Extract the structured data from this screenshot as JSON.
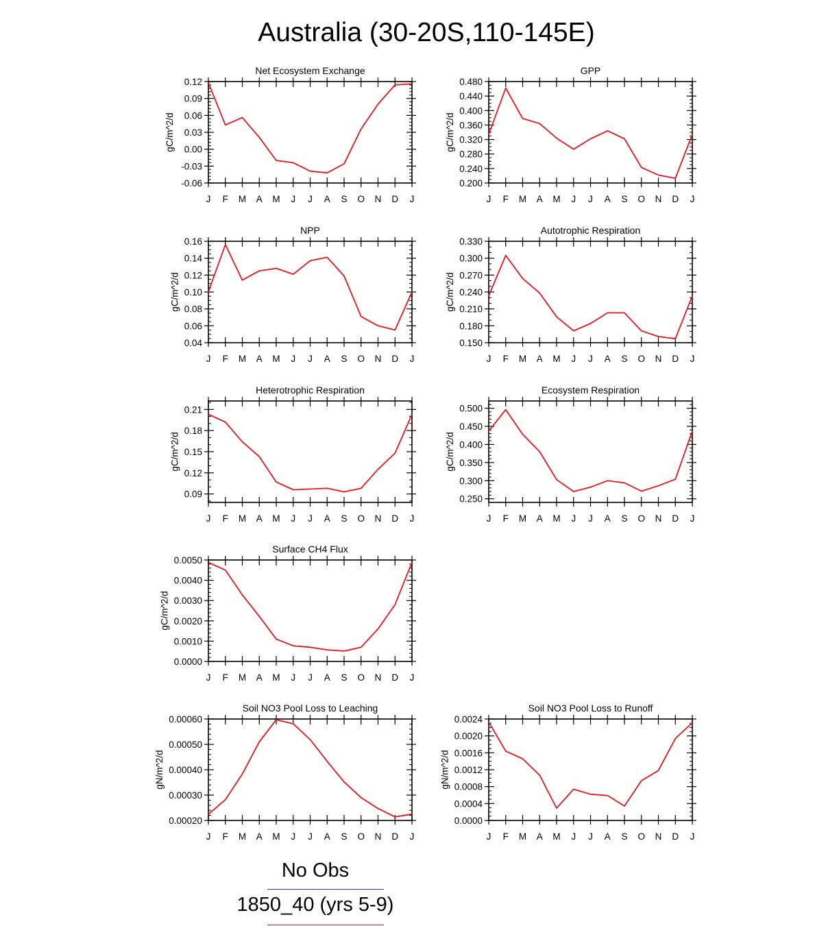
{
  "page": {
    "title": "Australia (30-20S,110-145E)"
  },
  "colors": {
    "series": "#e8141a",
    "obs": "#2b2bd6",
    "axis": "#000000"
  },
  "legend": [
    {
      "label": "No Obs",
      "color": "#2b2bd6"
    },
    {
      "label": "1850_40 (yrs 5-9)",
      "color": "#e8141a"
    }
  ],
  "chart_data": [
    {
      "type": "line",
      "title": "Net Ecosystem Exchange",
      "ylabel": "gC/m^2/d",
      "categories": [
        "J",
        "F",
        "M",
        "A",
        "M",
        "J",
        "J",
        "A",
        "S",
        "O",
        "N",
        "D",
        "J"
      ],
      "ylim": [
        -0.06,
        0.12
      ],
      "yticks": [
        -0.06,
        -0.03,
        0.0,
        0.03,
        0.06,
        0.09,
        0.12
      ],
      "ytick_labels": [
        "-0.06",
        "-0.03",
        "0.00",
        "0.03",
        "0.06",
        "0.09",
        "0.12"
      ],
      "yminor": 5,
      "series": [
        {
          "name": "1850_40 (yrs 5-9)",
          "values": [
            0.118,
            0.043,
            0.056,
            0.021,
            -0.02,
            -0.024,
            -0.039,
            -0.042,
            -0.026,
            0.036,
            0.08,
            0.114,
            0.116
          ]
        }
      ]
    },
    {
      "type": "line",
      "title": "GPP",
      "ylabel": "gC/m^2/d",
      "categories": [
        "J",
        "F",
        "M",
        "A",
        "M",
        "J",
        "J",
        "A",
        "S",
        "O",
        "N",
        "D",
        "J"
      ],
      "ylim": [
        0.2,
        0.48
      ],
      "yticks": [
        0.2,
        0.24,
        0.28,
        0.32,
        0.36,
        0.4,
        0.44,
        0.48
      ],
      "ytick_labels": [
        "0.200",
        "0.240",
        "0.280",
        "0.320",
        "0.360",
        "0.400",
        "0.440",
        "0.480"
      ],
      "yminor": 4,
      "series": [
        {
          "name": "1850_40 (yrs 5-9)",
          "values": [
            0.334,
            0.462,
            0.378,
            0.364,
            0.324,
            0.293,
            0.322,
            0.344,
            0.322,
            0.243,
            0.222,
            0.213,
            0.334
          ]
        }
      ]
    },
    {
      "type": "line",
      "title": "NPP",
      "ylabel": "gC/m^2/d",
      "categories": [
        "J",
        "F",
        "M",
        "A",
        "M",
        "J",
        "J",
        "A",
        "S",
        "O",
        "N",
        "D",
        "J"
      ],
      "ylim": [
        0.04,
        0.16
      ],
      "yticks": [
        0.04,
        0.06,
        0.08,
        0.1,
        0.12,
        0.14,
        0.16
      ],
      "ytick_labels": [
        "0.04",
        "0.06",
        "0.08",
        "0.10",
        "0.12",
        "0.14",
        "0.16"
      ],
      "yminor": 4,
      "series": [
        {
          "name": "1850_40 (yrs 5-9)",
          "values": [
            0.1,
            0.156,
            0.114,
            0.125,
            0.128,
            0.121,
            0.137,
            0.141,
            0.119,
            0.071,
            0.06,
            0.055,
            0.1
          ]
        }
      ]
    },
    {
      "type": "line",
      "title": "Autotrophic Respiration",
      "ylabel": "gC/m^2/d",
      "categories": [
        "J",
        "F",
        "M",
        "A",
        "M",
        "J",
        "J",
        "A",
        "S",
        "O",
        "N",
        "D",
        "J"
      ],
      "ylim": [
        0.15,
        0.33
      ],
      "yticks": [
        0.15,
        0.18,
        0.21,
        0.24,
        0.27,
        0.3,
        0.33
      ],
      "ytick_labels": [
        "0.150",
        "0.180",
        "0.210",
        "0.240",
        "0.270",
        "0.300",
        "0.330"
      ],
      "yminor": 3,
      "series": [
        {
          "name": "1850_40 (yrs 5-9)",
          "values": [
            0.233,
            0.305,
            0.264,
            0.238,
            0.196,
            0.171,
            0.184,
            0.203,
            0.203,
            0.171,
            0.161,
            0.157,
            0.233
          ]
        }
      ]
    },
    {
      "type": "line",
      "title": "Heterotrophic Respiration",
      "ylabel": "gC/m^2/d",
      "categories": [
        "J",
        "F",
        "M",
        "A",
        "M",
        "J",
        "J",
        "A",
        "S",
        "O",
        "N",
        "D",
        "J"
      ],
      "ylim": [
        0.078,
        0.222
      ],
      "yticks": [
        0.09,
        0.12,
        0.15,
        0.18,
        0.21
      ],
      "ytick_labels": [
        "0.09",
        "0.12",
        "0.15",
        "0.18",
        "0.21"
      ],
      "yminor": 3,
      "series": [
        {
          "name": "1850_40 (yrs 5-9)",
          "values": [
            0.203,
            0.192,
            0.164,
            0.143,
            0.107,
            0.096,
            0.097,
            0.098,
            0.093,
            0.098,
            0.125,
            0.148,
            0.203
          ]
        }
      ]
    },
    {
      "type": "line",
      "title": "Ecosystem Respiration",
      "ylabel": "gC/m^2/d",
      "categories": [
        "J",
        "F",
        "M",
        "A",
        "M",
        "J",
        "J",
        "A",
        "S",
        "O",
        "N",
        "D",
        "J"
      ],
      "ylim": [
        0.24,
        0.52
      ],
      "yticks": [
        0.25,
        0.3,
        0.35,
        0.4,
        0.45,
        0.5
      ],
      "ytick_labels": [
        "0.250",
        "0.300",
        "0.350",
        "0.400",
        "0.450",
        "0.500"
      ],
      "yminor": 5,
      "series": [
        {
          "name": "1850_40 (yrs 5-9)",
          "values": [
            0.437,
            0.496,
            0.428,
            0.38,
            0.303,
            0.27,
            0.282,
            0.3,
            0.294,
            0.271,
            0.286,
            0.304,
            0.437
          ]
        }
      ]
    },
    {
      "type": "line",
      "title": "Surface CH4 Flux",
      "ylabel": "gC/m^2/d",
      "categories": [
        "J",
        "F",
        "M",
        "A",
        "M",
        "J",
        "J",
        "A",
        "S",
        "O",
        "N",
        "D",
        "J"
      ],
      "ylim": [
        0.0,
        0.005
      ],
      "yticks": [
        0.0,
        0.001,
        0.002,
        0.003,
        0.004,
        0.005
      ],
      "ytick_labels": [
        "0.0000",
        "0.0010",
        "0.0020",
        "0.0030",
        "0.0040",
        "0.0050"
      ],
      "yminor": 5,
      "series": [
        {
          "name": "1850_40 (yrs 5-9)",
          "values": [
            0.00488,
            0.0045,
            0.00328,
            0.00222,
            0.0011,
            0.00077,
            0.0007,
            0.00057,
            0.00051,
            0.0007,
            0.0016,
            0.0028,
            0.00488
          ]
        }
      ]
    },
    {
      "type": "line",
      "title": "Soil NO3 Pool Loss to Leaching",
      "ylabel": "gN/m^2/d",
      "categories": [
        "J",
        "F",
        "M",
        "A",
        "M",
        "J",
        "J",
        "A",
        "S",
        "O",
        "N",
        "D",
        "J"
      ],
      "ylim": [
        0.0002,
        0.0006
      ],
      "yticks": [
        0.0002,
        0.0003,
        0.0004,
        0.0005,
        0.0006
      ],
      "ytick_labels": [
        "0.00020",
        "0.00030",
        "0.00040",
        "0.00050",
        "0.00060"
      ],
      "yminor": 5,
      "series": [
        {
          "name": "1850_40 (yrs 5-9)",
          "values": [
            0.000224,
            0.000282,
            0.000383,
            0.00051,
            0.000597,
            0.000581,
            0.000519,
            0.000433,
            0.000352,
            0.00029,
            0.000247,
            0.000214,
            0.000225
          ]
        }
      ]
    },
    {
      "type": "line",
      "title": "Soil NO3 Pool Loss to Runoff",
      "ylabel": "gN/m^2/d",
      "categories": [
        "J",
        "F",
        "M",
        "A",
        "M",
        "J",
        "J",
        "A",
        "S",
        "O",
        "N",
        "D",
        "J"
      ],
      "ylim": [
        0.0,
        0.0024
      ],
      "yticks": [
        0.0,
        0.0004,
        0.0008,
        0.0012,
        0.0016,
        0.002,
        0.0024
      ],
      "ytick_labels": [
        "0.0000",
        "0.0004",
        "0.0008",
        "0.0012",
        "0.0016",
        "0.0020",
        "0.0024"
      ],
      "yminor": 4,
      "series": [
        {
          "name": "1850_40 (yrs 5-9)",
          "values": [
            0.00233,
            0.00164,
            0.00146,
            0.00107,
            0.00029,
            0.00074,
            0.00062,
            0.00059,
            0.00034,
            0.00094,
            0.00118,
            0.00194,
            0.00231
          ]
        }
      ]
    }
  ]
}
